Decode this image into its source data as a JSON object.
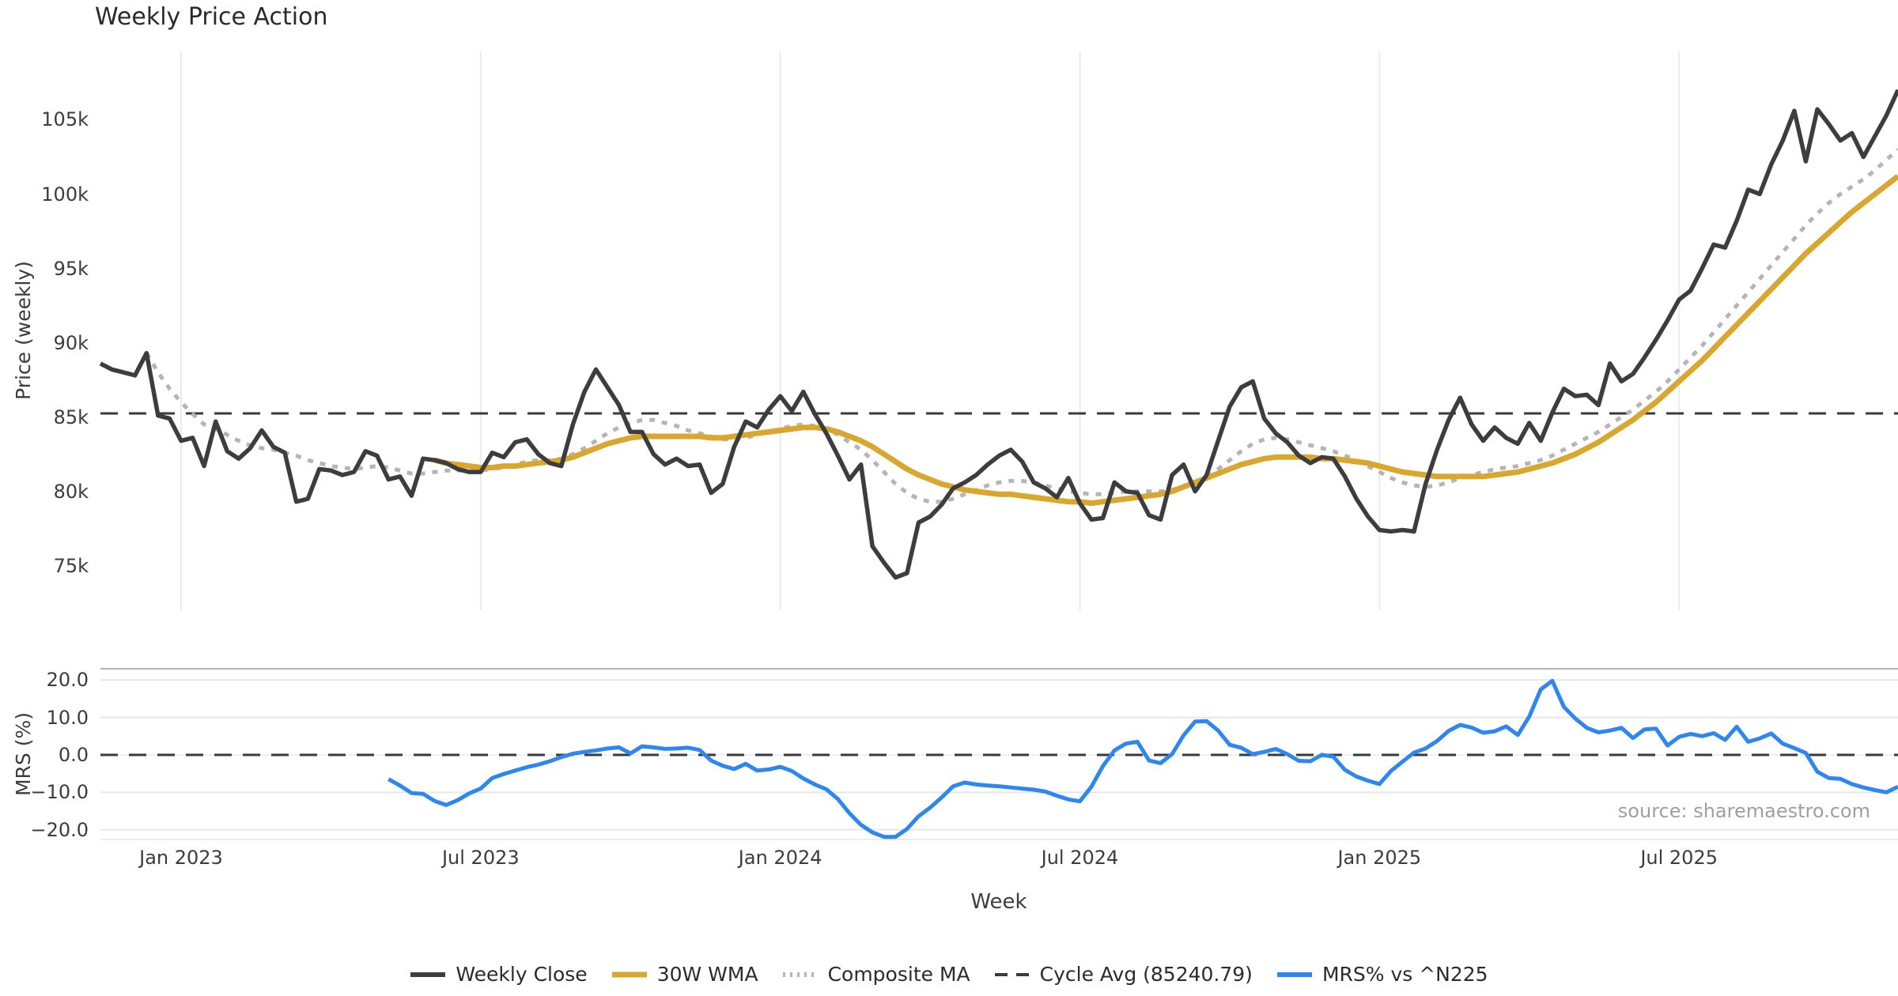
{
  "title": "Weekly Price Action",
  "source_text": "source: sharemaestro.com",
  "legend": [
    {
      "label": "Weekly Close",
      "color": "#3d3d3d",
      "style": "solid",
      "thickness": 6
    },
    {
      "label": "30W WMA",
      "color": "#D9A62E",
      "style": "solid",
      "thickness": 7
    },
    {
      "label": "Composite MA",
      "color": "#b5b5b5",
      "style": "dotted",
      "thickness": 6
    },
    {
      "label": "Cycle Avg (85240.79)",
      "color": "#3a3a3a",
      "style": "dashed",
      "thickness": 4
    },
    {
      "label": "MRS% vs ^N225",
      "color": "#2E86F0",
      "style": "solid",
      "thickness": 6
    }
  ],
  "chart_data": {
    "type": "line",
    "title": "Weekly Price Action",
    "xlabel": "Week",
    "x_start_date": "2022-11-14",
    "x_interval_days": 7,
    "n_weeks": 157,
    "x_ticks": [
      {
        "label": "Jan 2023",
        "week": 7
      },
      {
        "label": "Jul 2023",
        "week": 33
      },
      {
        "label": "Jan 2024",
        "week": 59
      },
      {
        "label": "Jul 2024",
        "week": 85
      },
      {
        "label": "Jan 2025",
        "week": 111
      },
      {
        "label": "Jul 2025",
        "week": 137
      }
    ],
    "price_panel": {
      "ylabel": "Price (weekly)",
      "units": "thousands",
      "ylim": [
        72.0,
        109.6
      ],
      "yticks": [
        {
          "label": "105k",
          "value": 105
        },
        {
          "label": "100k",
          "value": 100
        },
        {
          "label": "95k",
          "value": 95
        },
        {
          "label": "90k",
          "value": 90
        },
        {
          "label": "85k",
          "value": 85
        },
        {
          "label": "80k",
          "value": 80
        },
        {
          "label": "75k",
          "value": 75
        }
      ],
      "cycle_avg_value": 85240.79,
      "cycle_avg_k": 85.24079,
      "series": [
        {
          "name": "Weekly Close",
          "color": "#3d3d3d",
          "style": "solid",
          "width": 5.5,
          "values": [
            88.6,
            88.2,
            88.0,
            87.8,
            89.3,
            85.1,
            84.9,
            83.4,
            83.6,
            81.7,
            84.7,
            82.7,
            82.2,
            82.9,
            84.1,
            83.0,
            82.6,
            79.3,
            79.5,
            81.5,
            81.4,
            81.1,
            81.3,
            82.7,
            82.4,
            80.8,
            81.0,
            79.7,
            82.2,
            82.1,
            81.9,
            81.5,
            81.3,
            81.3,
            82.6,
            82.3,
            83.3,
            83.5,
            82.5,
            81.9,
            81.7,
            84.5,
            86.7,
            88.2,
            87.0,
            85.8,
            84.0,
            84.0,
            82.5,
            81.8,
            82.2,
            81.7,
            81.8,
            79.9,
            80.5,
            83.0,
            84.7,
            84.3,
            85.5,
            86.4,
            85.4,
            86.7,
            85.2,
            83.9,
            82.4,
            80.8,
            81.8,
            76.3,
            75.2,
            74.2,
            74.5,
            77.9,
            78.3,
            79.1,
            80.2,
            80.6,
            81.1,
            81.8,
            82.4,
            82.8,
            82.0,
            80.6,
            80.2,
            79.6,
            80.9,
            79.2,
            78.1,
            78.2,
            80.6,
            80.0,
            79.9,
            78.4,
            78.1,
            81.1,
            81.8,
            80.0,
            81.1,
            83.4,
            85.7,
            87.0,
            87.4,
            84.9,
            83.9,
            83.3,
            82.4,
            81.9,
            82.3,
            82.2,
            81.0,
            79.5,
            78.3,
            77.4,
            77.3,
            77.4,
            77.3,
            80.5,
            82.8,
            84.8,
            86.3,
            84.5,
            83.4,
            84.3,
            83.6,
            83.2,
            84.6,
            83.4,
            85.3,
            86.9,
            86.4,
            86.5,
            85.8,
            88.6,
            87.4,
            87.9,
            89.0,
            90.2,
            91.5,
            92.9,
            93.5,
            95.0,
            96.6,
            96.4,
            98.2,
            100.3,
            100.0,
            102.0,
            103.6,
            105.6,
            102.2,
            105.7,
            104.7,
            103.6,
            104.1,
            102.5,
            103.9,
            105.3,
            107.0
          ]
        },
        {
          "name": "30W WMA",
          "color": "#D9A62E",
          "style": "solid",
          "width": 7,
          "values": [
            null,
            null,
            null,
            null,
            null,
            null,
            null,
            null,
            null,
            null,
            null,
            null,
            null,
            null,
            null,
            null,
            null,
            null,
            null,
            null,
            null,
            null,
            null,
            null,
            null,
            null,
            null,
            null,
            null,
            82.1,
            81.9,
            81.8,
            81.7,
            81.6,
            81.6,
            81.7,
            81.7,
            81.8,
            81.9,
            82.0,
            82.1,
            82.3,
            82.6,
            82.9,
            83.2,
            83.4,
            83.6,
            83.7,
            83.7,
            83.7,
            83.7,
            83.7,
            83.7,
            83.6,
            83.6,
            83.7,
            83.8,
            83.9,
            84.0,
            84.1,
            84.2,
            84.3,
            84.3,
            84.2,
            84.0,
            83.7,
            83.4,
            83.0,
            82.5,
            82.0,
            81.5,
            81.1,
            80.8,
            80.5,
            80.3,
            80.1,
            80.0,
            79.9,
            79.8,
            79.8,
            79.7,
            79.6,
            79.5,
            79.4,
            79.3,
            79.3,
            79.2,
            79.3,
            79.4,
            79.5,
            79.6,
            79.7,
            79.8,
            80.0,
            80.3,
            80.6,
            80.9,
            81.2,
            81.5,
            81.8,
            82.0,
            82.2,
            82.3,
            82.3,
            82.3,
            82.3,
            82.2,
            82.2,
            82.1,
            82.0,
            81.9,
            81.7,
            81.5,
            81.3,
            81.2,
            81.1,
            81.0,
            81.0,
            81.0,
            81.0,
            81.0,
            81.1,
            81.2,
            81.3,
            81.5,
            81.7,
            81.9,
            82.2,
            82.5,
            82.9,
            83.3,
            83.8,
            84.3,
            84.8,
            85.4,
            86.0,
            86.7,
            87.4,
            88.1,
            88.8,
            89.6,
            90.4,
            91.2,
            92.0,
            92.8,
            93.6,
            94.4,
            95.2,
            96.0,
            96.7,
            97.4,
            98.1,
            98.8,
            99.4,
            100.0,
            100.6,
            101.2
          ]
        },
        {
          "name": "Composite MA",
          "color": "#b5b5b5",
          "style": "dotted",
          "width": 5,
          "values": [
            null,
            null,
            null,
            null,
            89.3,
            88.0,
            86.9,
            86.0,
            85.2,
            84.5,
            84.2,
            83.8,
            83.4,
            83.1,
            82.9,
            82.8,
            82.6,
            82.4,
            82.1,
            81.9,
            81.7,
            81.6,
            81.5,
            81.6,
            81.7,
            81.6,
            81.4,
            81.2,
            81.2,
            81.3,
            81.4,
            81.4,
            81.4,
            81.4,
            81.5,
            81.6,
            81.8,
            82.0,
            82.1,
            82.1,
            82.2,
            82.5,
            82.9,
            83.4,
            83.9,
            84.3,
            84.6,
            84.8,
            84.8,
            84.6,
            84.4,
            84.1,
            83.9,
            83.7,
            83.5,
            83.5,
            83.6,
            83.8,
            84.0,
            84.2,
            84.4,
            84.5,
            84.4,
            84.2,
            83.8,
            83.3,
            82.8,
            82.1,
            81.3,
            80.5,
            79.9,
            79.5,
            79.3,
            79.3,
            79.5,
            79.8,
            80.1,
            80.4,
            80.6,
            80.7,
            80.7,
            80.6,
            80.4,
            80.2,
            80.0,
            79.9,
            79.8,
            79.8,
            79.9,
            80.0,
            80.0,
            80.0,
            80.0,
            80.1,
            80.3,
            80.6,
            81.0,
            81.5,
            82.1,
            82.7,
            83.2,
            83.5,
            83.6,
            83.5,
            83.3,
            83.1,
            82.9,
            82.7,
            82.4,
            82.1,
            81.7,
            81.3,
            80.9,
            80.6,
            80.4,
            80.3,
            80.4,
            80.6,
            80.9,
            81.1,
            81.3,
            81.5,
            81.6,
            81.7,
            81.9,
            82.1,
            82.4,
            82.8,
            83.2,
            83.6,
            84.0,
            84.5,
            85.0,
            85.5,
            86.1,
            86.7,
            87.4,
            88.2,
            89.0,
            89.8,
            90.7,
            91.6,
            92.5,
            93.4,
            94.3,
            95.2,
            96.1,
            97.0,
            97.9,
            98.7,
            99.4,
            100.0,
            100.5,
            101.0,
            101.6,
            102.3,
            103.0
          ]
        }
      ]
    },
    "mrs_panel": {
      "ylabel": "MRS (%)",
      "ylim": [
        -22.6,
        23.0
      ],
      "zero_line_dashed": true,
      "yticks": [
        {
          "label": "20.0",
          "value": 20
        },
        {
          "label": "10.0",
          "value": 10
        },
        {
          "label": "0.0",
          "value": 0
        },
        {
          "label": "−10.0",
          "value": -10
        },
        {
          "label": "−20.0",
          "value": -20
        }
      ],
      "series": [
        {
          "name": "MRS% vs ^N225",
          "color": "#2E86F0",
          "style": "solid",
          "width": 5,
          "values": [
            null,
            null,
            null,
            null,
            null,
            null,
            null,
            null,
            null,
            null,
            null,
            null,
            null,
            null,
            null,
            null,
            null,
            null,
            null,
            null,
            null,
            null,
            null,
            null,
            null,
            -6.5,
            -8.2,
            -10.2,
            -10.4,
            -12.3,
            -13.4,
            -12.1,
            -10.3,
            -9.0,
            -6.2,
            -5.1,
            -4.2,
            -3.3,
            -2.6,
            -1.7,
            -0.6,
            0.3,
            0.8,
            1.2,
            1.7,
            2.0,
            0.4,
            2.3,
            2.0,
            1.6,
            1.7,
            1.9,
            1.3,
            -1.5,
            -2.9,
            -3.8,
            -2.4,
            -4.2,
            -3.9,
            -3.2,
            -4.3,
            -6.3,
            -7.9,
            -9.2,
            -11.8,
            -15.6,
            -18.7,
            -20.7,
            -21.9,
            -21.9,
            -19.8,
            -16.4,
            -14.1,
            -11.4,
            -8.4,
            -7.4,
            -7.9,
            -8.2,
            -8.4,
            -8.7,
            -9.0,
            -9.3,
            -9.8,
            -10.9,
            -11.9,
            -12.4,
            -8.5,
            -3.0,
            1.2,
            3.0,
            3.5,
            -1.5,
            -2.2,
            0.2,
            5.2,
            8.9,
            9.0,
            6.5,
            2.7,
            1.9,
            0.2,
            0.8,
            1.6,
            0.2,
            -1.6,
            -1.7,
            0.0,
            -0.5,
            -4.0,
            -5.8,
            -6.9,
            -7.8,
            -4.3,
            -1.8,
            0.6,
            1.7,
            3.7,
            6.4,
            8.0,
            7.3,
            5.9,
            6.3,
            7.6,
            5.3,
            10.2,
            17.5,
            19.8,
            12.8,
            9.7,
            7.2,
            6.0,
            6.5,
            7.2,
            4.5,
            6.8,
            7.0,
            2.5,
            4.8,
            5.6,
            5.0,
            5.8,
            4.0,
            7.5,
            3.5,
            4.4,
            5.7,
            3.0,
            1.8,
            0.5,
            -4.5,
            -6.2,
            -6.4,
            -7.8,
            -8.7,
            -9.4,
            -10.0,
            -8.5
          ]
        }
      ]
    }
  }
}
